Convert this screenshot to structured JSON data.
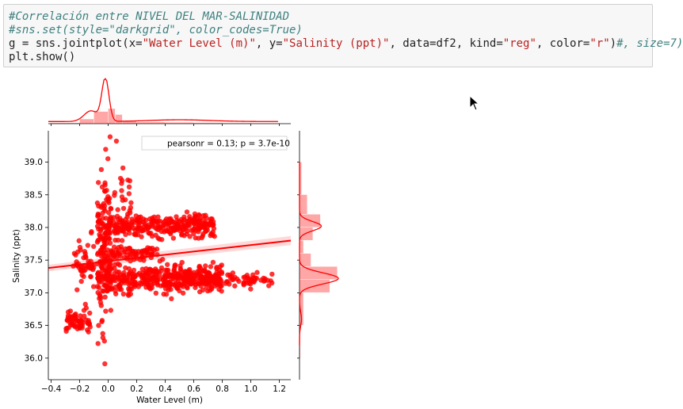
{
  "code_cell": {
    "lines": [
      [
        {
          "t": "#Correlación entre NIVEL DEL MAR-SALINIDAD",
          "k": "comment"
        }
      ],
      [
        {
          "t": "#sns.set(style=\"darkgrid\", color_codes=True)",
          "k": "comment"
        }
      ],
      [
        {
          "t": "g = sns.jointplot(x=",
          "k": "plain"
        },
        {
          "t": "\"Water Level (m)\"",
          "k": "str"
        },
        {
          "t": ", y=",
          "k": "plain"
        },
        {
          "t": "\"Salinity (ppt)\"",
          "k": "str"
        },
        {
          "t": ", data=df2, kind=",
          "k": "plain"
        },
        {
          "t": "\"reg\"",
          "k": "str"
        },
        {
          "t": ", color=",
          "k": "plain"
        },
        {
          "t": "\"r\"",
          "k": "str"
        },
        {
          "t": ")",
          "k": "plain"
        },
        {
          "t": "#, size=7)",
          "k": "comment"
        }
      ],
      [
        {
          "t": "plt.show()",
          "k": "plain"
        }
      ]
    ]
  },
  "chart_data": {
    "type": "scatter",
    "kind": "reg",
    "color": "#ff0000",
    "xlabel": "Water Level (m)",
    "ylabel": "Salinity (ppt)",
    "xlim": [
      -0.42,
      1.28
    ],
    "ylim": [
      35.67,
      39.48
    ],
    "x_ticks": [
      -0.4,
      -0.2,
      0.0,
      0.2,
      0.4,
      0.6,
      0.8,
      1.0,
      1.2
    ],
    "x_tick_labels": [
      "−0.4",
      "−0.2",
      "0.0",
      "0.2",
      "0.4",
      "0.6",
      "0.8",
      "1.0",
      "1.2"
    ],
    "y_ticks": [
      36.0,
      36.5,
      37.0,
      37.5,
      38.0,
      38.5,
      39.0
    ],
    "y_tick_labels": [
      "36.0",
      "36.5",
      "37.0",
      "37.5",
      "38.0",
      "38.5",
      "39.0"
    ],
    "legend_text": "pearsonr = 0.13; p = 3.7e-10",
    "legend_position": "top-right",
    "regression_line": {
      "x": [
        -0.42,
        1.28
      ],
      "y": [
        37.38,
        37.8
      ]
    },
    "clusters": [
      {
        "x_range": [
          -0.02,
          0.8
        ],
        "y_center": 37.22,
        "y_spread": 0.1,
        "count": 420
      },
      {
        "x_range": [
          -0.02,
          0.75
        ],
        "y_center": 38.02,
        "y_spread": 0.09,
        "count": 300
      },
      {
        "x_range": [
          0.75,
          1.15
        ],
        "y_center": 37.2,
        "y_spread": 0.06,
        "count": 60
      },
      {
        "x_range": [
          -0.08,
          0.02
        ],
        "y_center": 37.6,
        "y_spread": 0.55,
        "count": 180
      },
      {
        "x_range": [
          0.02,
          0.35
        ],
        "y_center": 37.6,
        "y_spread": 0.05,
        "count": 70
      },
      {
        "x_range": [
          -0.3,
          -0.12
        ],
        "y_center": 36.55,
        "y_spread": 0.08,
        "count": 60
      },
      {
        "x_range": [
          -0.25,
          -0.1
        ],
        "y_center": 37.45,
        "y_spread": 0.18,
        "count": 50
      },
      {
        "x_range": [
          0.04,
          0.16
        ],
        "y_center": 38.6,
        "y_spread": 0.25,
        "count": 20
      }
    ],
    "marginal_x_hist": {
      "bins": [
        -0.4,
        -0.2,
        -0.1,
        0.0,
        0.05,
        0.1,
        0.2,
        0.4,
        0.6,
        0.8,
        1.0,
        1.2
      ],
      "density": [
        0.05,
        0.3,
        0.8,
        1.0,
        0.6,
        0.2,
        0.1,
        0.08,
        0.06,
        0.04,
        0.03
      ]
    },
    "marginal_y_hist": {
      "bins": [
        36.0,
        36.5,
        37.0,
        37.2,
        37.4,
        37.6,
        37.8,
        38.0,
        38.2,
        38.5,
        39.0
      ],
      "density": [
        0.02,
        0.1,
        0.8,
        1.0,
        0.3,
        0.1,
        0.35,
        0.55,
        0.2,
        0.05
      ]
    }
  }
}
